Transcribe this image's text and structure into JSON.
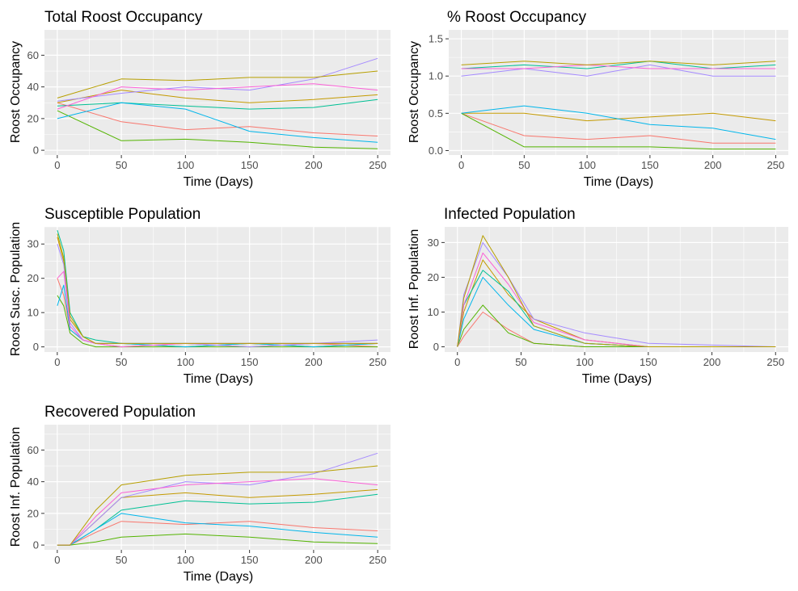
{
  "colors": {
    "panel_bg": "#EBEBEB",
    "grid_major": "#FFFFFF",
    "tick": "#333333",
    "series": [
      "#F8766D",
      "#C49A00",
      "#53B400",
      "#00C094",
      "#00B6EB",
      "#A58AFF",
      "#FB61D7",
      "#B79F00"
    ]
  },
  "chart_data": [
    {
      "type": "line",
      "title": "Total Roost Occupancy",
      "xlabel": "Time (Days)",
      "ylabel": "Roost Occupancy",
      "xlim": [
        -10,
        260
      ],
      "ylim": [
        -3,
        76
      ],
      "x_ticks": [
        0,
        50,
        100,
        150,
        200,
        250
      ],
      "y_ticks": [
        0,
        20,
        40,
        60
      ],
      "grid": true,
      "legend": "none",
      "series": [
        {
          "x": [
            0,
            50,
            100,
            150,
            200,
            250
          ],
          "values": [
            30,
            18,
            13,
            15,
            11,
            9
          ]
        },
        {
          "x": [
            0,
            50,
            100,
            150,
            200,
            250
          ],
          "values": [
            30,
            38,
            33,
            30,
            32,
            35
          ]
        },
        {
          "x": [
            0,
            50,
            100,
            150,
            200,
            250
          ],
          "values": [
            25,
            6,
            7,
            5,
            2,
            1
          ]
        },
        {
          "x": [
            0,
            50,
            100,
            150,
            200,
            250
          ],
          "values": [
            28,
            30,
            28,
            26,
            27,
            32
          ]
        },
        {
          "x": [
            0,
            50,
            100,
            150,
            200,
            250
          ],
          "values": [
            20,
            30,
            26,
            12,
            8,
            5
          ]
        },
        {
          "x": [
            0,
            50,
            100,
            150,
            200,
            250
          ],
          "values": [
            31,
            36,
            40,
            38,
            45,
            58
          ]
        },
        {
          "x": [
            0,
            50,
            100,
            150,
            200,
            250
          ],
          "values": [
            26,
            40,
            38,
            40,
            42,
            38
          ]
        },
        {
          "x": [
            0,
            50,
            100,
            150,
            200,
            250
          ],
          "values": [
            33,
            45,
            44,
            46,
            46,
            50
          ]
        }
      ]
    },
    {
      "type": "line",
      "title": "% Roost Occupancy",
      "xlabel": "Time (Days)",
      "ylabel": "Roost Occupancy",
      "xlim": [
        -10,
        260
      ],
      "ylim": [
        -0.06,
        1.62
      ],
      "x_ticks": [
        0,
        50,
        100,
        150,
        200,
        250
      ],
      "y_ticks": [
        0.0,
        0.5,
        1.0,
        1.5
      ],
      "y_tick_labels": [
        "0.0",
        "0.5",
        "1.0",
        "1.5"
      ],
      "grid": true,
      "legend": "none",
      "series": [
        {
          "x": [
            0,
            50,
            100,
            150,
            200,
            250
          ],
          "values": [
            0.5,
            0.2,
            0.15,
            0.2,
            0.1,
            0.1
          ]
        },
        {
          "x": [
            0,
            50,
            100,
            150,
            200,
            250
          ],
          "values": [
            0.5,
            0.5,
            0.4,
            0.45,
            0.5,
            0.4
          ]
        },
        {
          "x": [
            0,
            50,
            100,
            150,
            200,
            250
          ],
          "values": [
            0.5,
            0.05,
            0.05,
            0.05,
            0.02,
            0.02
          ]
        },
        {
          "x": [
            0,
            50,
            100,
            150,
            200,
            250
          ],
          "values": [
            1.1,
            1.15,
            1.1,
            1.2,
            1.1,
            1.15
          ]
        },
        {
          "x": [
            0,
            50,
            100,
            150,
            200,
            250
          ],
          "values": [
            0.5,
            0.6,
            0.5,
            0.35,
            0.3,
            0.15
          ]
        },
        {
          "x": [
            0,
            50,
            100,
            150,
            200,
            250
          ],
          "values": [
            1.0,
            1.1,
            1.0,
            1.15,
            1.0,
            1.0
          ]
        },
        {
          "x": [
            0,
            50,
            100,
            150,
            200,
            250
          ],
          "values": [
            1.1,
            1.1,
            1.15,
            1.1,
            1.1,
            1.1
          ]
        },
        {
          "x": [
            0,
            50,
            100,
            150,
            200,
            250
          ],
          "values": [
            1.15,
            1.2,
            1.15,
            1.2,
            1.15,
            1.2
          ]
        }
      ]
    },
    {
      "type": "line",
      "title": "Susceptible Population",
      "xlabel": "Time (Days)",
      "ylabel": "Roost Susc. Population",
      "xlim": [
        -10,
        260
      ],
      "ylim": [
        -1.5,
        35
      ],
      "x_ticks": [
        0,
        50,
        100,
        150,
        200,
        250
      ],
      "y_ticks": [
        0,
        10,
        20,
        30
      ],
      "grid": true,
      "legend": "none",
      "series": [
        {
          "x": [
            0,
            5,
            10,
            20,
            30,
            50,
            100,
            150,
            200,
            250
          ],
          "values": [
            20,
            15,
            5,
            2,
            1,
            0,
            1,
            0,
            1,
            0
          ]
        },
        {
          "x": [
            0,
            5,
            10,
            20,
            30,
            50,
            100,
            150,
            200,
            250
          ],
          "values": [
            32,
            25,
            8,
            3,
            1,
            1,
            0,
            1,
            0,
            1
          ]
        },
        {
          "x": [
            0,
            5,
            10,
            20,
            30,
            50,
            100,
            150,
            200,
            250
          ],
          "values": [
            15,
            12,
            4,
            1,
            0,
            0,
            0,
            0,
            0,
            0
          ]
        },
        {
          "x": [
            0,
            5,
            10,
            20,
            30,
            50,
            100,
            150,
            200,
            250
          ],
          "values": [
            34,
            28,
            10,
            3,
            2,
            1,
            1,
            1,
            1,
            1
          ]
        },
        {
          "x": [
            0,
            5,
            10,
            20,
            30,
            50,
            100,
            150,
            200,
            250
          ],
          "values": [
            12,
            18,
            5,
            2,
            1,
            1,
            0,
            1,
            0,
            1
          ]
        },
        {
          "x": [
            0,
            5,
            10,
            20,
            30,
            50,
            100,
            150,
            200,
            250
          ],
          "values": [
            30,
            24,
            7,
            2,
            1,
            1,
            1,
            0,
            1,
            2
          ]
        },
        {
          "x": [
            0,
            5,
            10,
            20,
            30,
            50,
            100,
            150,
            200,
            250
          ],
          "values": [
            20,
            22,
            6,
            2,
            1,
            0,
            1,
            1,
            1,
            1
          ]
        },
        {
          "x": [
            0,
            5,
            10,
            20,
            30,
            50,
            100,
            150,
            200,
            250
          ],
          "values": [
            33,
            26,
            9,
            3,
            1,
            1,
            1,
            1,
            1,
            1
          ]
        }
      ]
    },
    {
      "type": "line",
      "title": "Infected Population",
      "xlabel": "Time (Days)",
      "ylabel": "Roost Inf. Population",
      "xlim": [
        -10,
        260
      ],
      "ylim": [
        -1.5,
        34.5
      ],
      "x_ticks": [
        0,
        50,
        100,
        150,
        200,
        250
      ],
      "y_ticks": [
        0,
        10,
        20,
        30
      ],
      "grid": true,
      "legend": "none",
      "series": [
        {
          "x": [
            0,
            5,
            20,
            40,
            60,
            100,
            150,
            250
          ],
          "values": [
            0,
            3,
            10,
            5,
            1,
            0,
            0,
            0
          ]
        },
        {
          "x": [
            0,
            5,
            20,
            40,
            60,
            100,
            150,
            250
          ],
          "values": [
            0,
            10,
            25,
            15,
            8,
            2,
            0,
            0
          ]
        },
        {
          "x": [
            0,
            5,
            20,
            40,
            60,
            100,
            150,
            250
          ],
          "values": [
            0,
            5,
            12,
            4,
            1,
            0,
            0,
            0
          ]
        },
        {
          "x": [
            0,
            5,
            20,
            40,
            60,
            100,
            150,
            250
          ],
          "values": [
            0,
            12,
            22,
            16,
            6,
            1,
            0,
            0
          ]
        },
        {
          "x": [
            0,
            5,
            20,
            40,
            60,
            100,
            150,
            250
          ],
          "values": [
            0,
            8,
            20,
            12,
            5,
            1,
            0,
            0
          ]
        },
        {
          "x": [
            0,
            5,
            20,
            40,
            60,
            100,
            150,
            250
          ],
          "values": [
            0,
            15,
            30,
            20,
            8,
            4,
            1,
            0
          ]
        },
        {
          "x": [
            0,
            5,
            20,
            40,
            60,
            100,
            150,
            250
          ],
          "values": [
            0,
            12,
            27,
            18,
            7,
            2,
            0,
            0
          ]
        },
        {
          "x": [
            0,
            5,
            20,
            40,
            60,
            100,
            150,
            250
          ],
          "values": [
            0,
            14,
            32,
            20,
            6,
            1,
            0,
            0
          ]
        }
      ]
    },
    {
      "type": "line",
      "title": "Recovered Population",
      "xlabel": "Time (Days)",
      "ylabel": "Roost Inf. Population",
      "xlim": [
        -10,
        260
      ],
      "ylim": [
        -3,
        76
      ],
      "x_ticks": [
        0,
        50,
        100,
        150,
        200,
        250
      ],
      "y_ticks": [
        0,
        20,
        40,
        60
      ],
      "grid": true,
      "legend": "none",
      "series": [
        {
          "x": [
            0,
            10,
            30,
            50,
            100,
            150,
            200,
            250
          ],
          "values": [
            0,
            0,
            8,
            15,
            13,
            15,
            11,
            9
          ]
        },
        {
          "x": [
            0,
            10,
            30,
            50,
            100,
            150,
            200,
            250
          ],
          "values": [
            0,
            0,
            15,
            30,
            33,
            30,
            32,
            35
          ]
        },
        {
          "x": [
            0,
            10,
            30,
            50,
            100,
            150,
            200,
            250
          ],
          "values": [
            0,
            0,
            2,
            5,
            7,
            5,
            2,
            1
          ]
        },
        {
          "x": [
            0,
            10,
            30,
            50,
            100,
            150,
            200,
            250
          ],
          "values": [
            0,
            0,
            10,
            22,
            28,
            26,
            27,
            32
          ]
        },
        {
          "x": [
            0,
            10,
            30,
            50,
            100,
            150,
            200,
            250
          ],
          "values": [
            0,
            0,
            10,
            20,
            14,
            12,
            8,
            5
          ]
        },
        {
          "x": [
            0,
            10,
            30,
            50,
            100,
            150,
            200,
            250
          ],
          "values": [
            0,
            0,
            15,
            30,
            40,
            38,
            45,
            58
          ]
        },
        {
          "x": [
            0,
            10,
            30,
            50,
            100,
            150,
            200,
            250
          ],
          "values": [
            0,
            0,
            18,
            33,
            38,
            40,
            42,
            38
          ]
        },
        {
          "x": [
            0,
            10,
            30,
            50,
            100,
            150,
            200,
            250
          ],
          "values": [
            0,
            0,
            22,
            38,
            44,
            46,
            46,
            50
          ]
        }
      ]
    }
  ]
}
